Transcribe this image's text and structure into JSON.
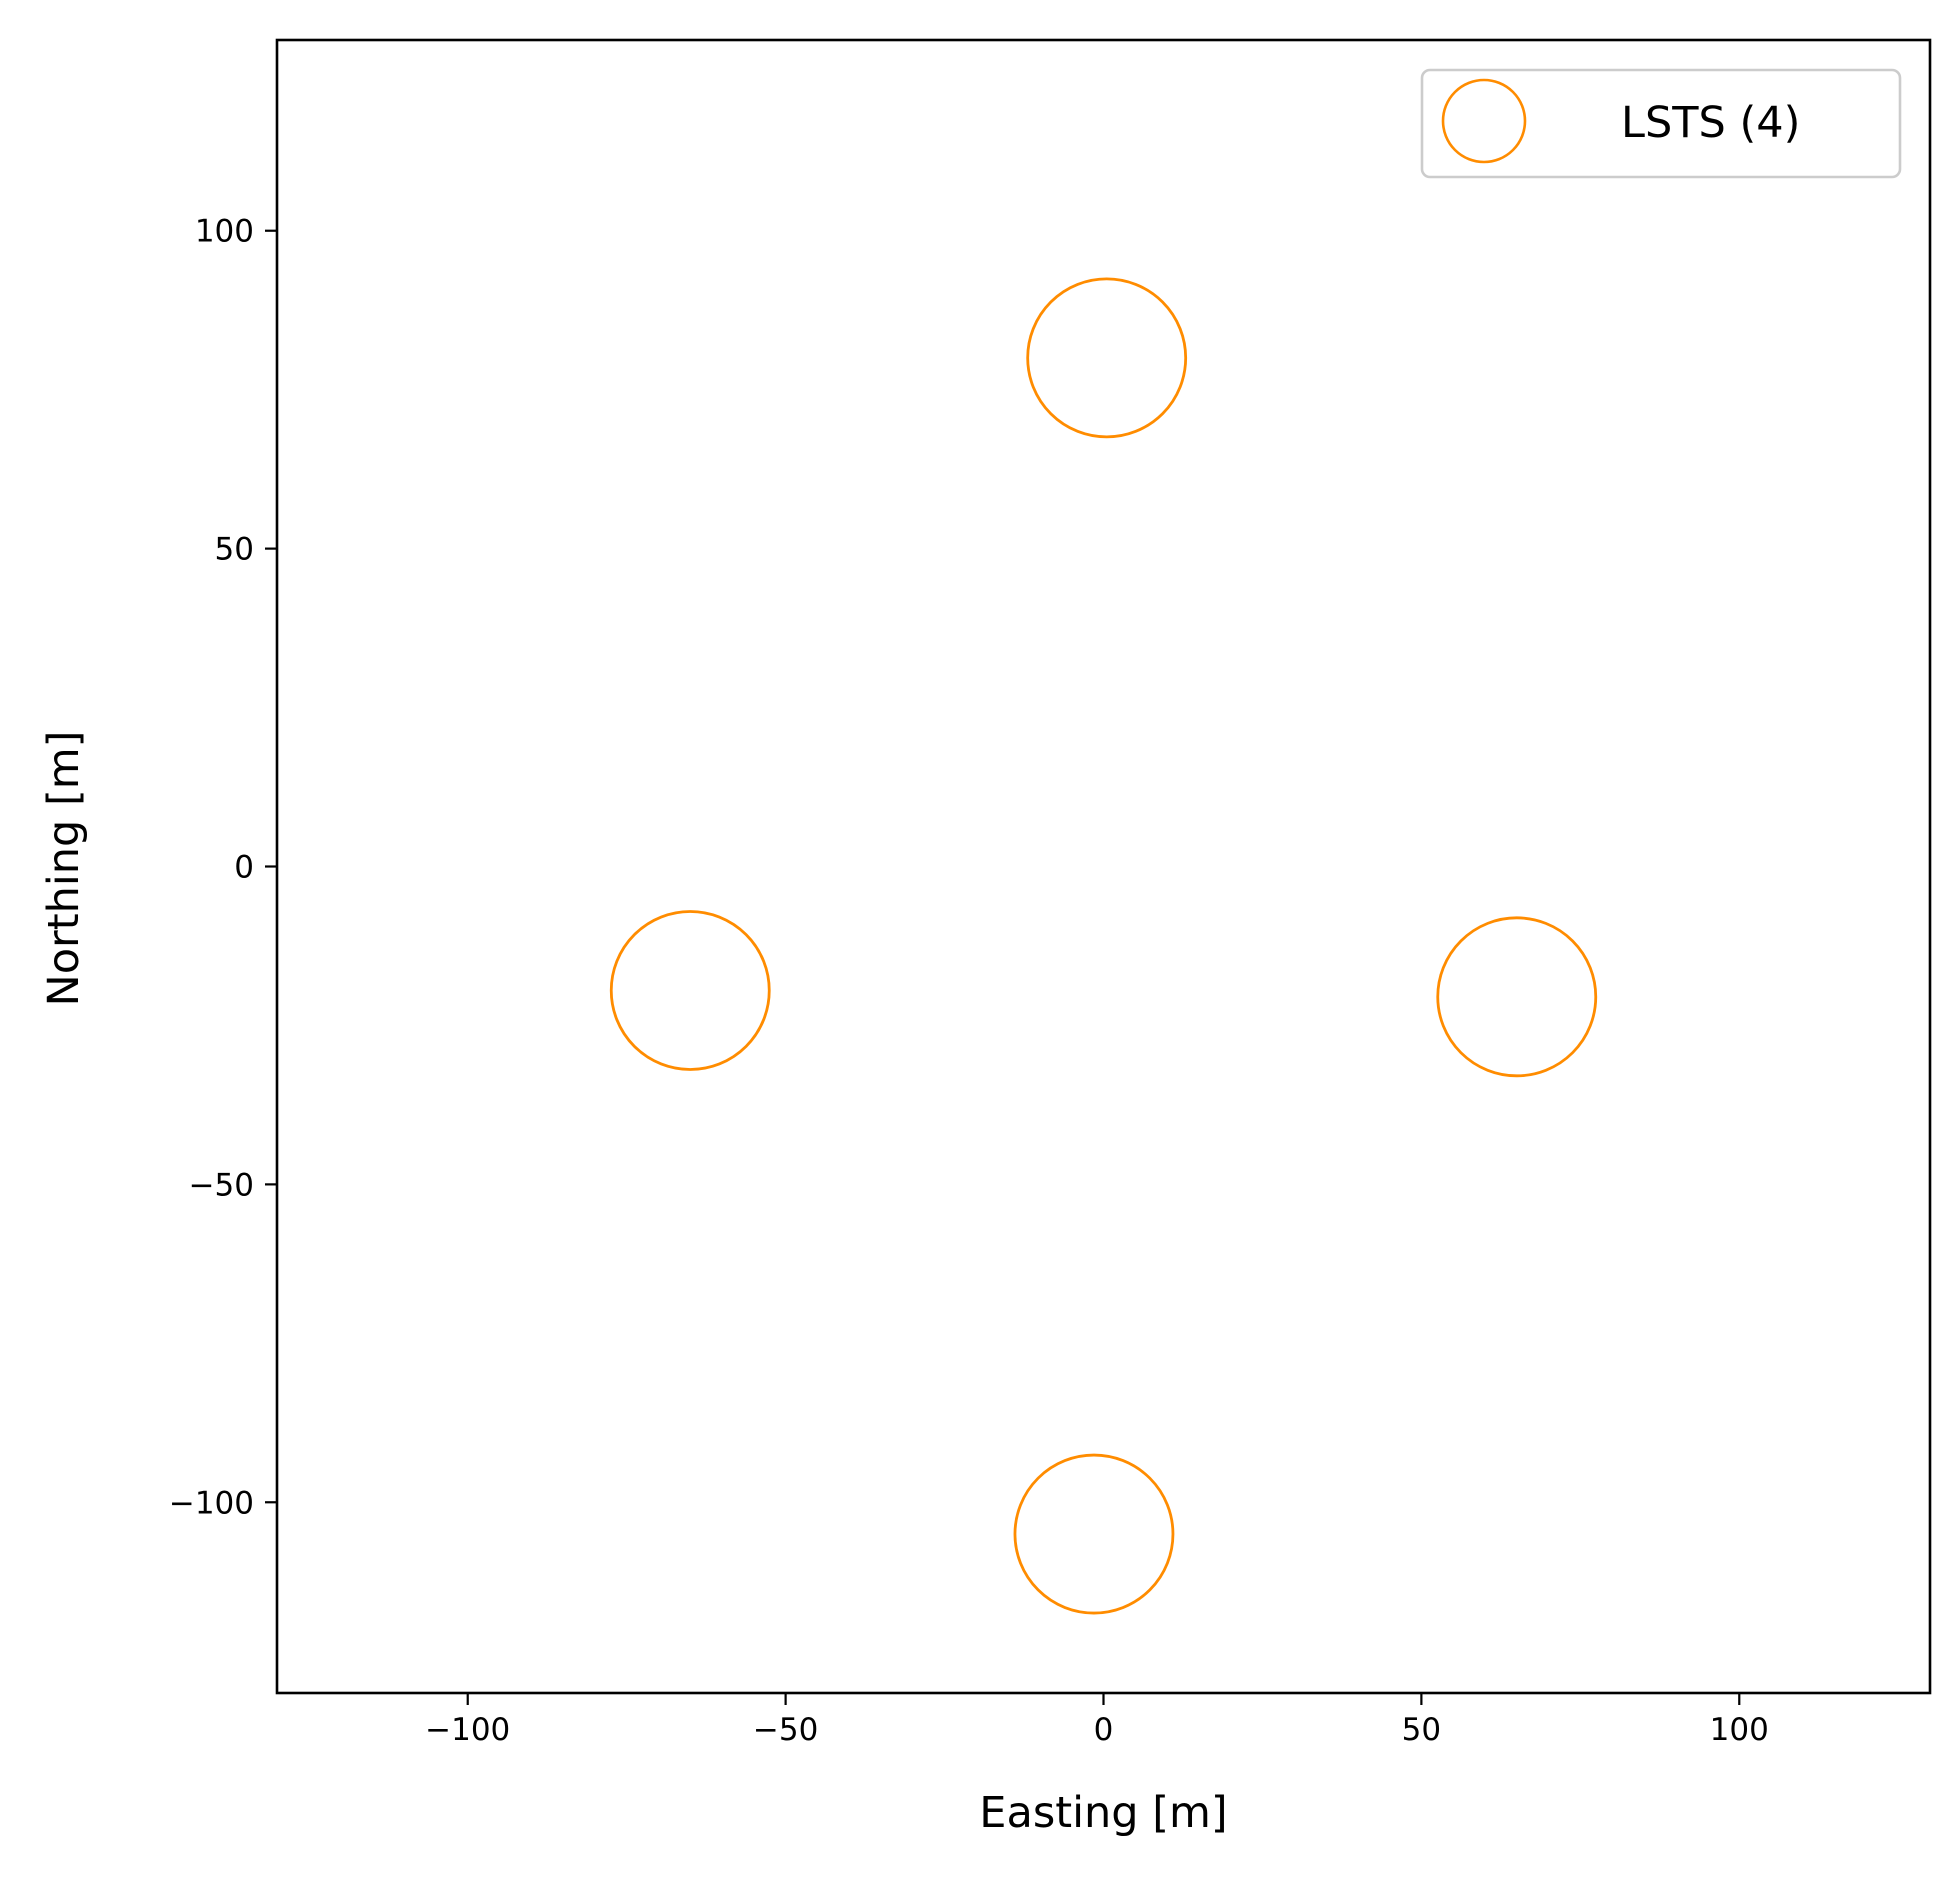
{
  "chart_data": {
    "type": "scatter",
    "title": "",
    "xlabel": "Easting [m]",
    "ylabel": "Northing [m]",
    "xlim": [
      -130,
      130
    ],
    "ylim": [
      -130,
      130
    ],
    "xticks": [
      -100,
      -50,
      0,
      50,
      100
    ],
    "yticks": [
      -100,
      -50,
      0,
      50,
      100
    ],
    "xtick_labels": [
      "−100",
      "−50",
      "0",
      "50",
      "100"
    ],
    "ytick_labels": [
      "−100",
      "−50",
      "0",
      "50",
      "100"
    ],
    "grid": false,
    "legend_position": "top-right",
    "series": [
      {
        "name": "LSTS (4)",
        "marker": "hollow-circle",
        "color": "#ff8c00",
        "points": [
          {
            "x": 0.5,
            "y": 80
          },
          {
            "x": -65,
            "y": -19.5
          },
          {
            "x": 65,
            "y": -20.5
          },
          {
            "x": -1.5,
            "y": -105
          }
        ]
      }
    ]
  }
}
